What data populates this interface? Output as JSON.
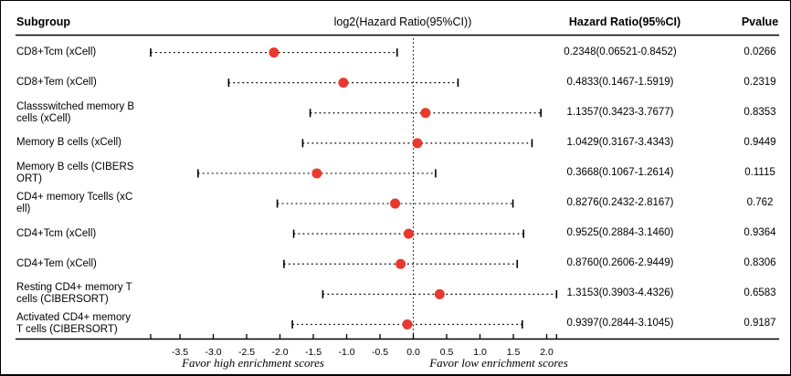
{
  "figure": {
    "columns": [
      "Subgroup",
      "log2(Hazard Ratio(95%CI))",
      "Hazard Ratio(95%CI)",
      "Pvalue"
    ]
  },
  "colors": {
    "marker": "#e8392e",
    "line": "#000000",
    "text": "#000000",
    "background": "#ffffff"
  },
  "chart_data": {
    "type": "scatter",
    "subtype": "forest-plot",
    "title": "log2(Hazard Ratio(95%CI))",
    "x_axis": {
      "scale": "log2(hazard ratio)",
      "tick_values": [
        -3.5,
        -3.0,
        -2.5,
        -2.0,
        -1.5,
        -1.0,
        -0.5,
        0.0,
        0.5,
        1.0,
        1.5,
        2.0
      ],
      "reference_line": 0,
      "caption_left": "Favor high enrichment scores",
      "caption_right": "Favor low enrichment scores"
    },
    "rows": [
      {
        "subgroup": "CD8+Tcm (xCell)",
        "label_lines": [
          "CD8+Tcm (xCell)"
        ],
        "hr": 0.2348,
        "ci_low": 0.06521,
        "ci_high": 0.8452,
        "hr_ci_text": "0.2348(0.06521-0.8452)",
        "pvalue": "0.0266"
      },
      {
        "subgroup": "CD8+Tem (xCell)",
        "label_lines": [
          "CD8+Tem (xCell)"
        ],
        "hr": 0.4833,
        "ci_low": 0.1467,
        "ci_high": 1.5919,
        "hr_ci_text": "0.4833(0.1467-1.5919)",
        "pvalue": "0.2319"
      },
      {
        "subgroup": "Classswitched memory B cells (xCell)",
        "label_lines": [
          "Classswitched memory B",
          "cells (xCell)"
        ],
        "hr": 1.1357,
        "ci_low": 0.3423,
        "ci_high": 3.7677,
        "hr_ci_text": "1.1357(0.3423-3.7677)",
        "pvalue": "0.8353"
      },
      {
        "subgroup": "Memory B cells (xCell)",
        "label_lines": [
          "Memory B cells (xCell)"
        ],
        "hr": 1.0429,
        "ci_low": 0.3167,
        "ci_high": 3.4343,
        "hr_ci_text": "1.0429(0.3167-3.4343)",
        "pvalue": "0.9449"
      },
      {
        "subgroup": "Memory B cells (CIBERSORT)",
        "label_lines": [
          "Memory B cells (CIBERS",
          "ORT)"
        ],
        "hr": 0.3668,
        "ci_low": 0.1067,
        "ci_high": 1.2614,
        "hr_ci_text": "0.3668(0.1067-1.2614)",
        "pvalue": "0.1115"
      },
      {
        "subgroup": "CD4+ memory Tcells (xCell)",
        "label_lines": [
          "CD4+ memory Tcells (xC",
          "ell)"
        ],
        "hr": 0.8276,
        "ci_low": 0.2432,
        "ci_high": 2.8167,
        "hr_ci_text": "0.8276(0.2432-2.8167)",
        "pvalue": "0.762"
      },
      {
        "subgroup": "CD4+Tcm (xCell)",
        "label_lines": [
          "CD4+Tcm (xCell)"
        ],
        "hr": 0.9525,
        "ci_low": 0.2884,
        "ci_high": 3.146,
        "hr_ci_text": "0.9525(0.2884-3.1460)",
        "pvalue": "0.9364"
      },
      {
        "subgroup": "CD4+Tem (xCell)",
        "label_lines": [
          "CD4+Tem (xCell)"
        ],
        "hr": 0.876,
        "ci_low": 0.2606,
        "ci_high": 2.9449,
        "hr_ci_text": "0.8760(0.2606-2.9449)",
        "pvalue": "0.8306"
      },
      {
        "subgroup": "Resting CD4+ memory T cells (CIBERSORT)",
        "label_lines": [
          "Resting CD4+ memory T",
          "cells (CIBERSORT)"
        ],
        "hr": 1.3153,
        "ci_low": 0.3903,
        "ci_high": 4.4326,
        "hr_ci_text": "1.3153(0.3903-4.4326)",
        "pvalue": "0.6583"
      },
      {
        "subgroup": "Activated CD4+ memory T cells (CIBERSORT)",
        "label_lines": [
          "Activated CD4+ memory",
          "T cells (CIBERSORT)"
        ],
        "hr": 0.9397,
        "ci_low": 0.2844,
        "ci_high": 3.1045,
        "hr_ci_text": "0.9397(0.2844-3.1045)",
        "pvalue": "0.9187"
      }
    ]
  }
}
